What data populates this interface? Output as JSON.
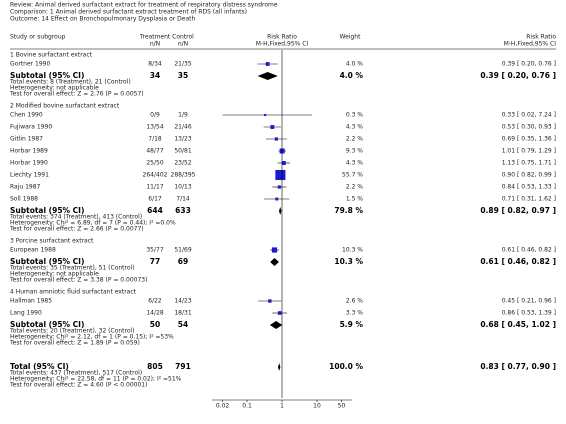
{
  "chart_data": {
    "type": "forest",
    "header": {
      "review": "Review:  Animal derived surfactant extract for treatment of respiratory distress syndrome",
      "comparison": "Comparison:  1 Animal derived surfactant extract treatment of RDS (all infants)",
      "outcome": "Outcome:  14 Effect on Bronchopulmonary Dysplasia or Death"
    },
    "columns": {
      "study": "Study or subgroup",
      "treatment": [
        "Treatment",
        "n/N"
      ],
      "control": [
        "Control",
        "n/N"
      ],
      "plot": [
        "Risk Ratio",
        "M-H,Fixed,95% CI"
      ],
      "weight": "Weight",
      "rr": [
        "Risk Ratio",
        "M-H,Fixed,95% CI"
      ]
    },
    "groups": [
      {
        "title": "1 Bovine surfactant extract",
        "studies": [
          {
            "name": "Gortner 1990",
            "treatment": "8/34",
            "control": "21/35",
            "weight": 4.0,
            "weight_label": "4.0 %",
            "rr": 0.39,
            "ci": [
              0.2,
              0.76
            ],
            "rr_label": "0.39 [ 0.20, 0.76 ]"
          }
        ],
        "subtotal": {
          "label": "Subtotal (95% CI)",
          "treatment": 34,
          "control": 35,
          "weight": 4.0,
          "weight_label": "4.0 %",
          "rr": 0.39,
          "ci": [
            0.2,
            0.76
          ],
          "rr_label": "0.39 [ 0.20, 0.76 ]"
        },
        "notes": [
          "Total events: 8 (Treatment), 21 (Control)",
          "Heterogeneity: not applicable",
          "Test for overall effect: Z = 2.76 (P = 0.0057)"
        ]
      },
      {
        "title": "2 Modified bovine surfactant extract",
        "studies": [
          {
            "name": "Chen 1990",
            "treatment": "0/9",
            "control": "1/9",
            "weight": 0.3,
            "weight_label": "0.3 %",
            "rr": 0.33,
            "ci": [
              0.02,
              7.24
            ],
            "rr_label": "0.33 [ 0.02, 7.24 ]"
          },
          {
            "name": "Fujiwara 1990",
            "treatment": "13/54",
            "control": "21/46",
            "weight": 4.3,
            "weight_label": "4.3 %",
            "rr": 0.53,
            "ci": [
              0.3,
              0.93
            ],
            "rr_label": "0.53 [ 0.30, 0.93 ]"
          },
          {
            "name": "Gitlin 1987",
            "treatment": "7/18",
            "control": "13/23",
            "weight": 2.2,
            "weight_label": "2.2 %",
            "rr": 0.69,
            "ci": [
              0.35,
              1.36
            ],
            "rr_label": "0.69 [ 0.35, 1.36 ]"
          },
          {
            "name": "Horbar 1989",
            "treatment": "48/77",
            "control": "50/81",
            "weight": 9.3,
            "weight_label": "9.3 %",
            "rr": 1.01,
            "ci": [
              0.79,
              1.29
            ],
            "rr_label": "1.01 [ 0.79, 1.29 ]"
          },
          {
            "name": "Horbar 1990",
            "treatment": "25/50",
            "control": "23/52",
            "weight": 4.3,
            "weight_label": "4.3 %",
            "rr": 1.13,
            "ci": [
              0.75,
              1.71
            ],
            "rr_label": "1.13 [ 0.75, 1.71 ]"
          },
          {
            "name": "Liechty 1991",
            "treatment": "264/402",
            "control": "288/395",
            "weight": 55.7,
            "weight_label": "55.7 %",
            "rr": 0.9,
            "ci": [
              0.82,
              0.99
            ],
            "rr_label": "0.90 [ 0.82, 0.99 ]"
          },
          {
            "name": "Raju 1987",
            "treatment": "11/17",
            "control": "10/13",
            "weight": 2.2,
            "weight_label": "2.2 %",
            "rr": 0.84,
            "ci": [
              0.53,
              1.33
            ],
            "rr_label": "0.84 [ 0.53, 1.33 ]"
          },
          {
            "name": "Soll 1988",
            "treatment": "6/17",
            "control": "7/14",
            "weight": 1.5,
            "weight_label": "1.5 %",
            "rr": 0.71,
            "ci": [
              0.31,
              1.62
            ],
            "rr_label": "0.71 [ 0.31, 1.62 ]"
          }
        ],
        "subtotal": {
          "label": "Subtotal (95% CI)",
          "treatment": 644,
          "control": 633,
          "weight": 79.8,
          "weight_label": "79.8 %",
          "rr": 0.89,
          "ci": [
            0.82,
            0.97
          ],
          "rr_label": "0.89 [ 0.82, 0.97 ]"
        },
        "notes": [
          "Total events: 374 (Treatment), 413 (Control)",
          "Heterogeneity: Chi² = 6.89, df = 7 (P = 0.44); I² =0.0%",
          "Test for overall effect: Z = 2.66 (P = 0.0077)"
        ]
      },
      {
        "title": "3 Porcine surfactant extract",
        "studies": [
          {
            "name": "European 1988",
            "treatment": "35/77",
            "control": "51/69",
            "weight": 10.3,
            "weight_label": "10.3 %",
            "rr": 0.61,
            "ci": [
              0.46,
              0.82
            ],
            "rr_label": "0.61 [ 0.46, 0.82 ]"
          }
        ],
        "subtotal": {
          "label": "Subtotal (95% CI)",
          "treatment": 77,
          "control": 69,
          "weight": 10.3,
          "weight_label": "10.3 %",
          "rr": 0.61,
          "ci": [
            0.46,
            0.82
          ],
          "rr_label": "0.61 [ 0.46, 0.82 ]"
        },
        "notes": [
          "Total events: 35 (Treatment), 51 (Control)",
          "Heterogeneity: not applicable",
          "Test for overall effect: Z = 3.38 (P = 0.00073)"
        ]
      },
      {
        "title": "4 Human amniotic fluid surfactant extract",
        "studies": [
          {
            "name": "Hallman 1985",
            "treatment": "6/22",
            "control": "14/23",
            "weight": 2.6,
            "weight_label": "2.6 %",
            "rr": 0.45,
            "ci": [
              0.21,
              0.96
            ],
            "rr_label": "0.45 [ 0.21, 0.96 ]"
          },
          {
            "name": "Lang 1990",
            "treatment": "14/28",
            "control": "18/31",
            "weight": 3.3,
            "weight_label": "3.3 %",
            "rr": 0.86,
            "ci": [
              0.53,
              1.39
            ],
            "rr_label": "0.86 [ 0.53, 1.39 ]"
          }
        ],
        "subtotal": {
          "label": "Subtotal (95% CI)",
          "treatment": 50,
          "control": 54,
          "weight": 5.9,
          "weight_label": "5.9 %",
          "rr": 0.68,
          "ci": [
            0.45,
            1.02
          ],
          "rr_label": "0.68 [ 0.45, 1.02 ]"
        },
        "notes": [
          "Total events: 20 (Treatment), 32 (Control)",
          "Heterogeneity: Chi² = 2.12, df = 1 (P = 0.15); I² =53%",
          "Test for overall effect: Z = 1.89 (P = 0.059)"
        ]
      }
    ],
    "total": {
      "label": "Total (95% CI)",
      "treatment": 805,
      "control": 791,
      "weight": 100.0,
      "weight_label": "100.0 %",
      "rr": 0.83,
      "ci": [
        0.77,
        0.9
      ],
      "rr_label": "0.83 [ 0.77, 0.90 ]",
      "notes": [
        "Total events: 437 (Treatment), 517 (Control)",
        "Heterogeneity: Chi² = 22.58, df = 11 (P = 0.02); I² =51%",
        "Test for overall effect: Z = 4.60 (P < 0.00001)"
      ]
    },
    "xscale": "log",
    "xlim": [
      0.01,
      100
    ],
    "xticks": [
      0.02,
      0.1,
      1,
      10,
      50
    ],
    "reference_line": 1,
    "square_color": "#1a1acc",
    "diamond_color": "#000000"
  }
}
